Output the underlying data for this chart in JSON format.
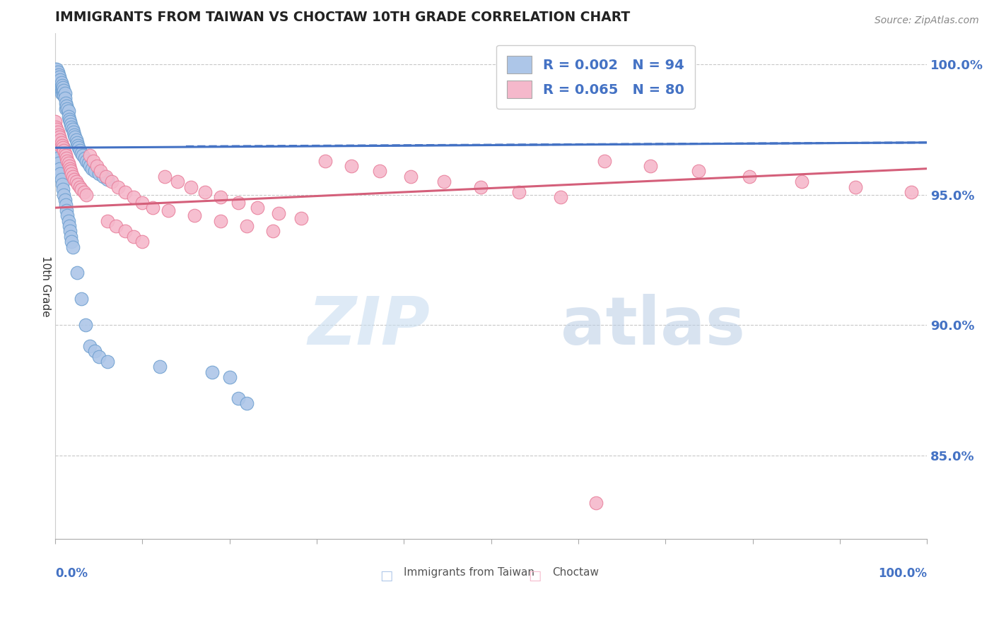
{
  "title": "IMMIGRANTS FROM TAIWAN VS CHOCTAW 10TH GRADE CORRELATION CHART",
  "source_text": "Source: ZipAtlas.com",
  "ylabel": "10th Grade",
  "right_yticks": [
    "100.0%",
    "95.0%",
    "90.0%",
    "85.0%"
  ],
  "right_ytick_vals": [
    1.0,
    0.95,
    0.9,
    0.85
  ],
  "xmin": 0.0,
  "xmax": 1.0,
  "ymin": 0.818,
  "ymax": 1.012,
  "legend_r1": "R = 0.002",
  "legend_n1": "N = 94",
  "legend_r2": "R = 0.065",
  "legend_n2": "N = 80",
  "watermark_zip": "ZIP",
  "watermark_atlas": "atlas",
  "blue_color": "#adc6e8",
  "blue_edge": "#6fa0d0",
  "pink_color": "#f5b8cb",
  "pink_edge": "#e8809c",
  "blue_line_color": "#4472c4",
  "pink_line_color": "#d45f7a",
  "blue_trend_x": [
    0.0,
    1.0
  ],
  "blue_trend_y": [
    0.968,
    0.97
  ],
  "pink_trend_x": [
    0.0,
    1.0
  ],
  "pink_trend_y": [
    0.945,
    0.96
  ],
  "grid_color": "#c8c8c8",
  "grid_yticks": [
    1.0,
    0.95,
    0.9,
    0.85
  ],
  "blue_scatter_x": [
    0.0,
    0.001,
    0.001,
    0.001,
    0.002,
    0.002,
    0.002,
    0.003,
    0.003,
    0.003,
    0.003,
    0.004,
    0.004,
    0.004,
    0.005,
    0.005,
    0.005,
    0.006,
    0.006,
    0.007,
    0.007,
    0.007,
    0.008,
    0.008,
    0.009,
    0.009,
    0.01,
    0.01,
    0.011,
    0.011,
    0.012,
    0.012,
    0.013,
    0.014,
    0.015,
    0.015,
    0.016,
    0.017,
    0.018,
    0.019,
    0.02,
    0.021,
    0.022,
    0.023,
    0.024,
    0.025,
    0.026,
    0.027,
    0.028,
    0.03,
    0.032,
    0.034,
    0.036,
    0.038,
    0.04,
    0.042,
    0.045,
    0.05,
    0.055,
    0.06,
    0.0,
    0.001,
    0.002,
    0.003,
    0.004,
    0.005,
    0.006,
    0.007,
    0.008,
    0.009,
    0.01,
    0.011,
    0.012,
    0.013,
    0.014,
    0.015,
    0.016,
    0.017,
    0.018,
    0.019,
    0.02,
    0.025,
    0.03,
    0.035,
    0.04,
    0.045,
    0.05,
    0.06,
    0.12,
    0.18,
    0.2,
    0.21,
    0.22,
    0.01
  ],
  "blue_scatter_y": [
    0.998,
    0.997,
    0.995,
    0.993,
    0.998,
    0.996,
    0.994,
    0.997,
    0.995,
    0.993,
    0.991,
    0.996,
    0.994,
    0.992,
    0.995,
    0.993,
    0.991,
    0.994,
    0.992,
    0.993,
    0.991,
    0.989,
    0.992,
    0.99,
    0.991,
    0.989,
    0.99,
    0.988,
    0.989,
    0.987,
    0.985,
    0.983,
    0.984,
    0.983,
    0.982,
    0.98,
    0.979,
    0.978,
    0.977,
    0.976,
    0.975,
    0.974,
    0.973,
    0.972,
    0.971,
    0.97,
    0.969,
    0.968,
    0.967,
    0.966,
    0.965,
    0.964,
    0.963,
    0.962,
    0.961,
    0.96,
    0.959,
    0.958,
    0.957,
    0.956,
    0.97,
    0.968,
    0.966,
    0.964,
    0.962,
    0.96,
    0.958,
    0.956,
    0.954,
    0.952,
    0.95,
    0.948,
    0.946,
    0.944,
    0.942,
    0.94,
    0.938,
    0.936,
    0.934,
    0.932,
    0.93,
    0.92,
    0.91,
    0.9,
    0.892,
    0.89,
    0.888,
    0.886,
    0.884,
    0.882,
    0.88,
    0.872,
    0.87,
    0.968
  ],
  "pink_scatter_x": [
    0.0,
    0.001,
    0.001,
    0.002,
    0.002,
    0.003,
    0.003,
    0.004,
    0.004,
    0.005,
    0.005,
    0.006,
    0.006,
    0.007,
    0.008,
    0.009,
    0.01,
    0.011,
    0.012,
    0.013,
    0.014,
    0.015,
    0.016,
    0.017,
    0.018,
    0.019,
    0.02,
    0.022,
    0.024,
    0.026,
    0.028,
    0.03,
    0.033,
    0.036,
    0.04,
    0.044,
    0.048,
    0.052,
    0.058,
    0.065,
    0.072,
    0.08,
    0.09,
    0.1,
    0.112,
    0.126,
    0.14,
    0.156,
    0.172,
    0.19,
    0.21,
    0.232,
    0.256,
    0.282,
    0.31,
    0.34,
    0.372,
    0.408,
    0.446,
    0.488,
    0.532,
    0.58,
    0.63,
    0.683,
    0.738,
    0.796,
    0.856,
    0.918,
    0.982,
    0.06,
    0.07,
    0.08,
    0.09,
    0.1,
    0.13,
    0.16,
    0.19,
    0.22,
    0.25,
    0.62
  ],
  "pink_scatter_y": [
    0.978,
    0.976,
    0.974,
    0.975,
    0.973,
    0.974,
    0.972,
    0.973,
    0.971,
    0.972,
    0.97,
    0.971,
    0.969,
    0.97,
    0.969,
    0.968,
    0.967,
    0.966,
    0.965,
    0.964,
    0.963,
    0.962,
    0.961,
    0.96,
    0.959,
    0.958,
    0.957,
    0.956,
    0.955,
    0.954,
    0.953,
    0.952,
    0.951,
    0.95,
    0.965,
    0.963,
    0.961,
    0.959,
    0.957,
    0.955,
    0.953,
    0.951,
    0.949,
    0.947,
    0.945,
    0.957,
    0.955,
    0.953,
    0.951,
    0.949,
    0.947,
    0.945,
    0.943,
    0.941,
    0.963,
    0.961,
    0.959,
    0.957,
    0.955,
    0.953,
    0.951,
    0.949,
    0.963,
    0.961,
    0.959,
    0.957,
    0.955,
    0.953,
    0.951,
    0.94,
    0.938,
    0.936,
    0.934,
    0.932,
    0.944,
    0.942,
    0.94,
    0.938,
    0.936,
    0.832
  ]
}
